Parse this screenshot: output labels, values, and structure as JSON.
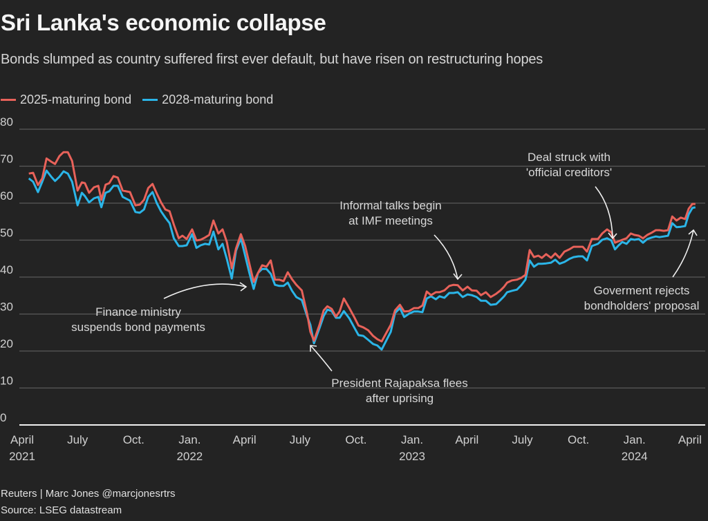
{
  "header": {
    "title": "Sri Lanka's economic collapse",
    "subtitle": "Bonds slumped as country suffered first ever default, but have risen on restructuring hopes"
  },
  "footer": {
    "credit": "Reuters | Marc Jones @marcjonesrtrs",
    "source": "Source: LSEG datastream"
  },
  "chart_data": {
    "type": "line",
    "title": "Sri Lanka's economic collapse",
    "subtitle": "Bonds slumped as country suffered first ever default, but have risen on restructuring hopes",
    "xlabel": "",
    "ylabel": "",
    "ylim": [
      0,
      80
    ],
    "yticks": [
      0,
      10,
      20,
      30,
      40,
      50,
      60,
      70,
      80
    ],
    "grid": true,
    "legend_position": "top-left",
    "xlim": [
      "2021-04-01",
      "2024-04-20"
    ],
    "xticks": [
      {
        "date": "2021-04-01",
        "label": [
          "April",
          "2021"
        ]
      },
      {
        "date": "2021-07-01",
        "label": [
          "July"
        ]
      },
      {
        "date": "2021-10-01",
        "label": [
          "Oct."
        ]
      },
      {
        "date": "2022-01-01",
        "label": [
          "Jan.",
          "2022"
        ]
      },
      {
        "date": "2022-04-01",
        "label": [
          "April"
        ]
      },
      {
        "date": "2022-07-01",
        "label": [
          "July"
        ]
      },
      {
        "date": "2022-10-01",
        "label": [
          "Oct."
        ]
      },
      {
        "date": "2023-01-01",
        "label": [
          "Jan.",
          "2023"
        ]
      },
      {
        "date": "2023-04-01",
        "label": [
          "April"
        ]
      },
      {
        "date": "2023-07-01",
        "label": [
          "July"
        ]
      },
      {
        "date": "2023-10-01",
        "label": [
          "Oct."
        ]
      },
      {
        "date": "2024-01-01",
        "label": [
          "Jan.",
          "2024"
        ]
      },
      {
        "date": "2024-04-01",
        "label": [
          "April"
        ]
      }
    ],
    "x": [
      "2021-04-12",
      "2021-04-19",
      "2021-04-27",
      "2021-05-04",
      "2021-05-11",
      "2021-05-19",
      "2021-05-25",
      "2021-06-01",
      "2021-06-08",
      "2021-06-15",
      "2021-06-22",
      "2021-07-01",
      "2021-07-08",
      "2021-07-13",
      "2021-07-20",
      "2021-07-28",
      "2021-08-04",
      "2021-08-09",
      "2021-08-16",
      "2021-08-22",
      "2021-08-29",
      "2021-09-05",
      "2021-09-13",
      "2021-09-25",
      "2021-10-04",
      "2021-10-11",
      "2021-10-18",
      "2021-10-25",
      "2021-11-01",
      "2021-11-08",
      "2021-11-15",
      "2021-11-22",
      "2021-11-29",
      "2021-12-06",
      "2021-12-14",
      "2021-12-20",
      "2021-12-27",
      "2022-01-05",
      "2022-01-12",
      "2022-01-19",
      "2022-01-26",
      "2022-02-02",
      "2022-02-09",
      "2022-02-17",
      "2022-02-24",
      "2022-03-03",
      "2022-03-11",
      "2022-03-18",
      "2022-03-26",
      "2022-04-02",
      "2022-04-09",
      "2022-04-16",
      "2022-04-23",
      "2022-04-30",
      "2022-05-07",
      "2022-05-14",
      "2022-05-21",
      "2022-05-28",
      "2022-06-04",
      "2022-06-11",
      "2022-06-18",
      "2022-06-25",
      "2022-07-04",
      "2022-07-13",
      "2022-07-18",
      "2022-07-24",
      "2022-08-02",
      "2022-08-09",
      "2022-08-15",
      "2022-08-22",
      "2022-08-29",
      "2022-09-04",
      "2022-09-11",
      "2022-09-20",
      "2022-09-28",
      "2022-10-05",
      "2022-10-13",
      "2022-10-21",
      "2022-10-29",
      "2022-11-05",
      "2022-11-12",
      "2022-11-27",
      "2022-12-04",
      "2022-12-12",
      "2022-12-19",
      "2022-12-27",
      "2023-01-04",
      "2023-01-11",
      "2023-01-18",
      "2023-01-25",
      "2023-02-01",
      "2023-02-09",
      "2023-02-15",
      "2023-02-23",
      "2023-03-03",
      "2023-03-10",
      "2023-03-17",
      "2023-03-25",
      "2023-04-02",
      "2023-04-09",
      "2023-04-17",
      "2023-04-24",
      "2023-05-02",
      "2023-05-10",
      "2023-05-19",
      "2023-05-26",
      "2023-06-01",
      "2023-06-06",
      "2023-06-14",
      "2023-06-22",
      "2023-06-29",
      "2023-07-06",
      "2023-07-13",
      "2023-07-20",
      "2023-07-27",
      "2023-08-02",
      "2023-08-09",
      "2023-08-17",
      "2023-08-24",
      "2023-08-31",
      "2023-09-08",
      "2023-09-16",
      "2023-09-23",
      "2023-10-01",
      "2023-10-08",
      "2023-10-15",
      "2023-10-23",
      "2023-11-02",
      "2023-11-09",
      "2023-11-17",
      "2023-11-24",
      "2023-11-30",
      "2023-12-06",
      "2023-12-12",
      "2023-12-19",
      "2023-12-26",
      "2024-01-01",
      "2024-01-08",
      "2024-01-15",
      "2024-01-22",
      "2024-01-29",
      "2024-02-05",
      "2024-02-11",
      "2024-02-18",
      "2024-02-25",
      "2024-03-03",
      "2024-03-10",
      "2024-03-17",
      "2024-03-24",
      "2024-03-30",
      "2024-04-05",
      "2024-04-10"
    ],
    "series": [
      {
        "name": "2025-maturing bond",
        "color": "#e8625a",
        "values": [
          68.0,
          68.2,
          64.9,
          66.7,
          72.1,
          71.2,
          70.6,
          72.7,
          73.8,
          73.8,
          71.4,
          63.4,
          65.6,
          65.4,
          62.8,
          64.3,
          64.7,
          60.9,
          65.0,
          65.4,
          67.3,
          66.9,
          63.4,
          63.0,
          59.4,
          59.6,
          60.9,
          64.1,
          65.2,
          62.6,
          60.2,
          58.3,
          57.8,
          54.2,
          50.5,
          51.2,
          50.3,
          52.9,
          49.9,
          50.1,
          50.7,
          51.4,
          55.3,
          51.8,
          52.9,
          49.5,
          42.4,
          47.7,
          51.6,
          48.4,
          43.6,
          38.7,
          41.1,
          43.2,
          42.8,
          44.5,
          39.3,
          39.3,
          38.9,
          41.3,
          39.4,
          37.9,
          36.4,
          29.9,
          25.2,
          22.8,
          27.1,
          31.0,
          32.1,
          31.4,
          29.3,
          30.7,
          34.2,
          31.6,
          29.2,
          26.9,
          26.4,
          25.6,
          24.1,
          23.2,
          22.6,
          27.1,
          31.0,
          32.5,
          30.7,
          30.8,
          31.6,
          31.6,
          32.3,
          36.1,
          35.1,
          35.9,
          35.9,
          36.4,
          37.6,
          37.9,
          37.8,
          36.4,
          37.4,
          36.4,
          36.3,
          35.1,
          35.9,
          34.6,
          35.5,
          36.4,
          37.4,
          38.5,
          39.1,
          39.3,
          39.8,
          40.6,
          47.3,
          45.4,
          45.8,
          45.2,
          46.2,
          45.2,
          46.4,
          45.2,
          46.9,
          47.5,
          48.2,
          48.2,
          48.2,
          46.9,
          50.3,
          50.3,
          51.8,
          52.9,
          52.1,
          49.3,
          49.7,
          50.1,
          50.5,
          51.8,
          51.4,
          51.2,
          50.5,
          51.4,
          52.0,
          52.7,
          52.7,
          52.5,
          52.7,
          56.4,
          55.3,
          56.1,
          55.7,
          58.5,
          59.8,
          59.8,
          58.9,
          57.4
        ]
      },
      {
        "name": "2028-maturing bond",
        "color": "#2bb5e8",
        "values": [
          66.7,
          65.8,
          63.0,
          65.8,
          68.8,
          67.1,
          66.0,
          67.1,
          68.6,
          68.0,
          65.8,
          59.4,
          62.8,
          61.9,
          60.2,
          61.3,
          61.7,
          58.9,
          62.8,
          63.2,
          64.7,
          64.7,
          61.7,
          60.7,
          57.6,
          57.4,
          58.3,
          61.7,
          63.0,
          60.0,
          57.8,
          56.1,
          54.6,
          50.5,
          48.4,
          48.4,
          48.6,
          51.6,
          47.9,
          48.6,
          49.0,
          48.8,
          52.3,
          47.5,
          49.0,
          44.9,
          39.6,
          47.1,
          50.5,
          45.8,
          41.1,
          36.8,
          41.1,
          42.2,
          42.2,
          40.9,
          37.9,
          37.6,
          37.6,
          38.5,
          36.3,
          34.6,
          33.8,
          29.3,
          27.1,
          22.1,
          26.2,
          29.5,
          31.2,
          30.8,
          29.0,
          29.0,
          30.8,
          28.8,
          26.4,
          24.3,
          24.1,
          23.0,
          21.9,
          21.5,
          20.4,
          25.2,
          30.3,
          31.6,
          29.2,
          30.1,
          30.7,
          30.7,
          30.5,
          34.2,
          34.8,
          34.0,
          34.8,
          34.4,
          35.7,
          35.7,
          35.9,
          34.6,
          35.3,
          35.1,
          34.6,
          33.6,
          33.6,
          32.5,
          32.7,
          33.8,
          34.8,
          35.9,
          36.3,
          36.6,
          37.8,
          39.3,
          44.5,
          42.8,
          43.6,
          43.6,
          43.7,
          43.9,
          44.7,
          43.6,
          44.1,
          44.9,
          45.4,
          45.6,
          45.6,
          44.5,
          48.4,
          49.0,
          50.1,
          50.5,
          49.9,
          47.5,
          48.6,
          49.5,
          49.0,
          50.3,
          50.1,
          50.3,
          49.3,
          50.3,
          50.7,
          51.0,
          50.8,
          51.0,
          51.2,
          54.6,
          53.5,
          53.6,
          53.8,
          57.0,
          58.7,
          58.9,
          57.4,
          54.6
        ]
      }
    ],
    "annotations": [
      {
        "text": [
          "Finance ministry",
          "suspends bond payments"
        ],
        "target_date": "2022-04-12",
        "target_value": 37.5
      },
      {
        "text": [
          "President Rajapaksa flees",
          "after uprising"
        ],
        "target_date": "2022-07-18",
        "target_value": 21.5
      },
      {
        "text": [
          "Informal talks begin",
          "at IMF meetings"
        ],
        "target_date": "2023-04-12",
        "target_value": 39.5
      },
      {
        "text": [
          "Deal struck with",
          "'official creditors'"
        ],
        "target_date": "2023-11-30",
        "target_value": 50.5
      },
      {
        "text": [
          "Goverment rejects",
          "bondholders' proposal"
        ],
        "target_date": "2024-04-05",
        "target_value": 53.0
      }
    ]
  }
}
